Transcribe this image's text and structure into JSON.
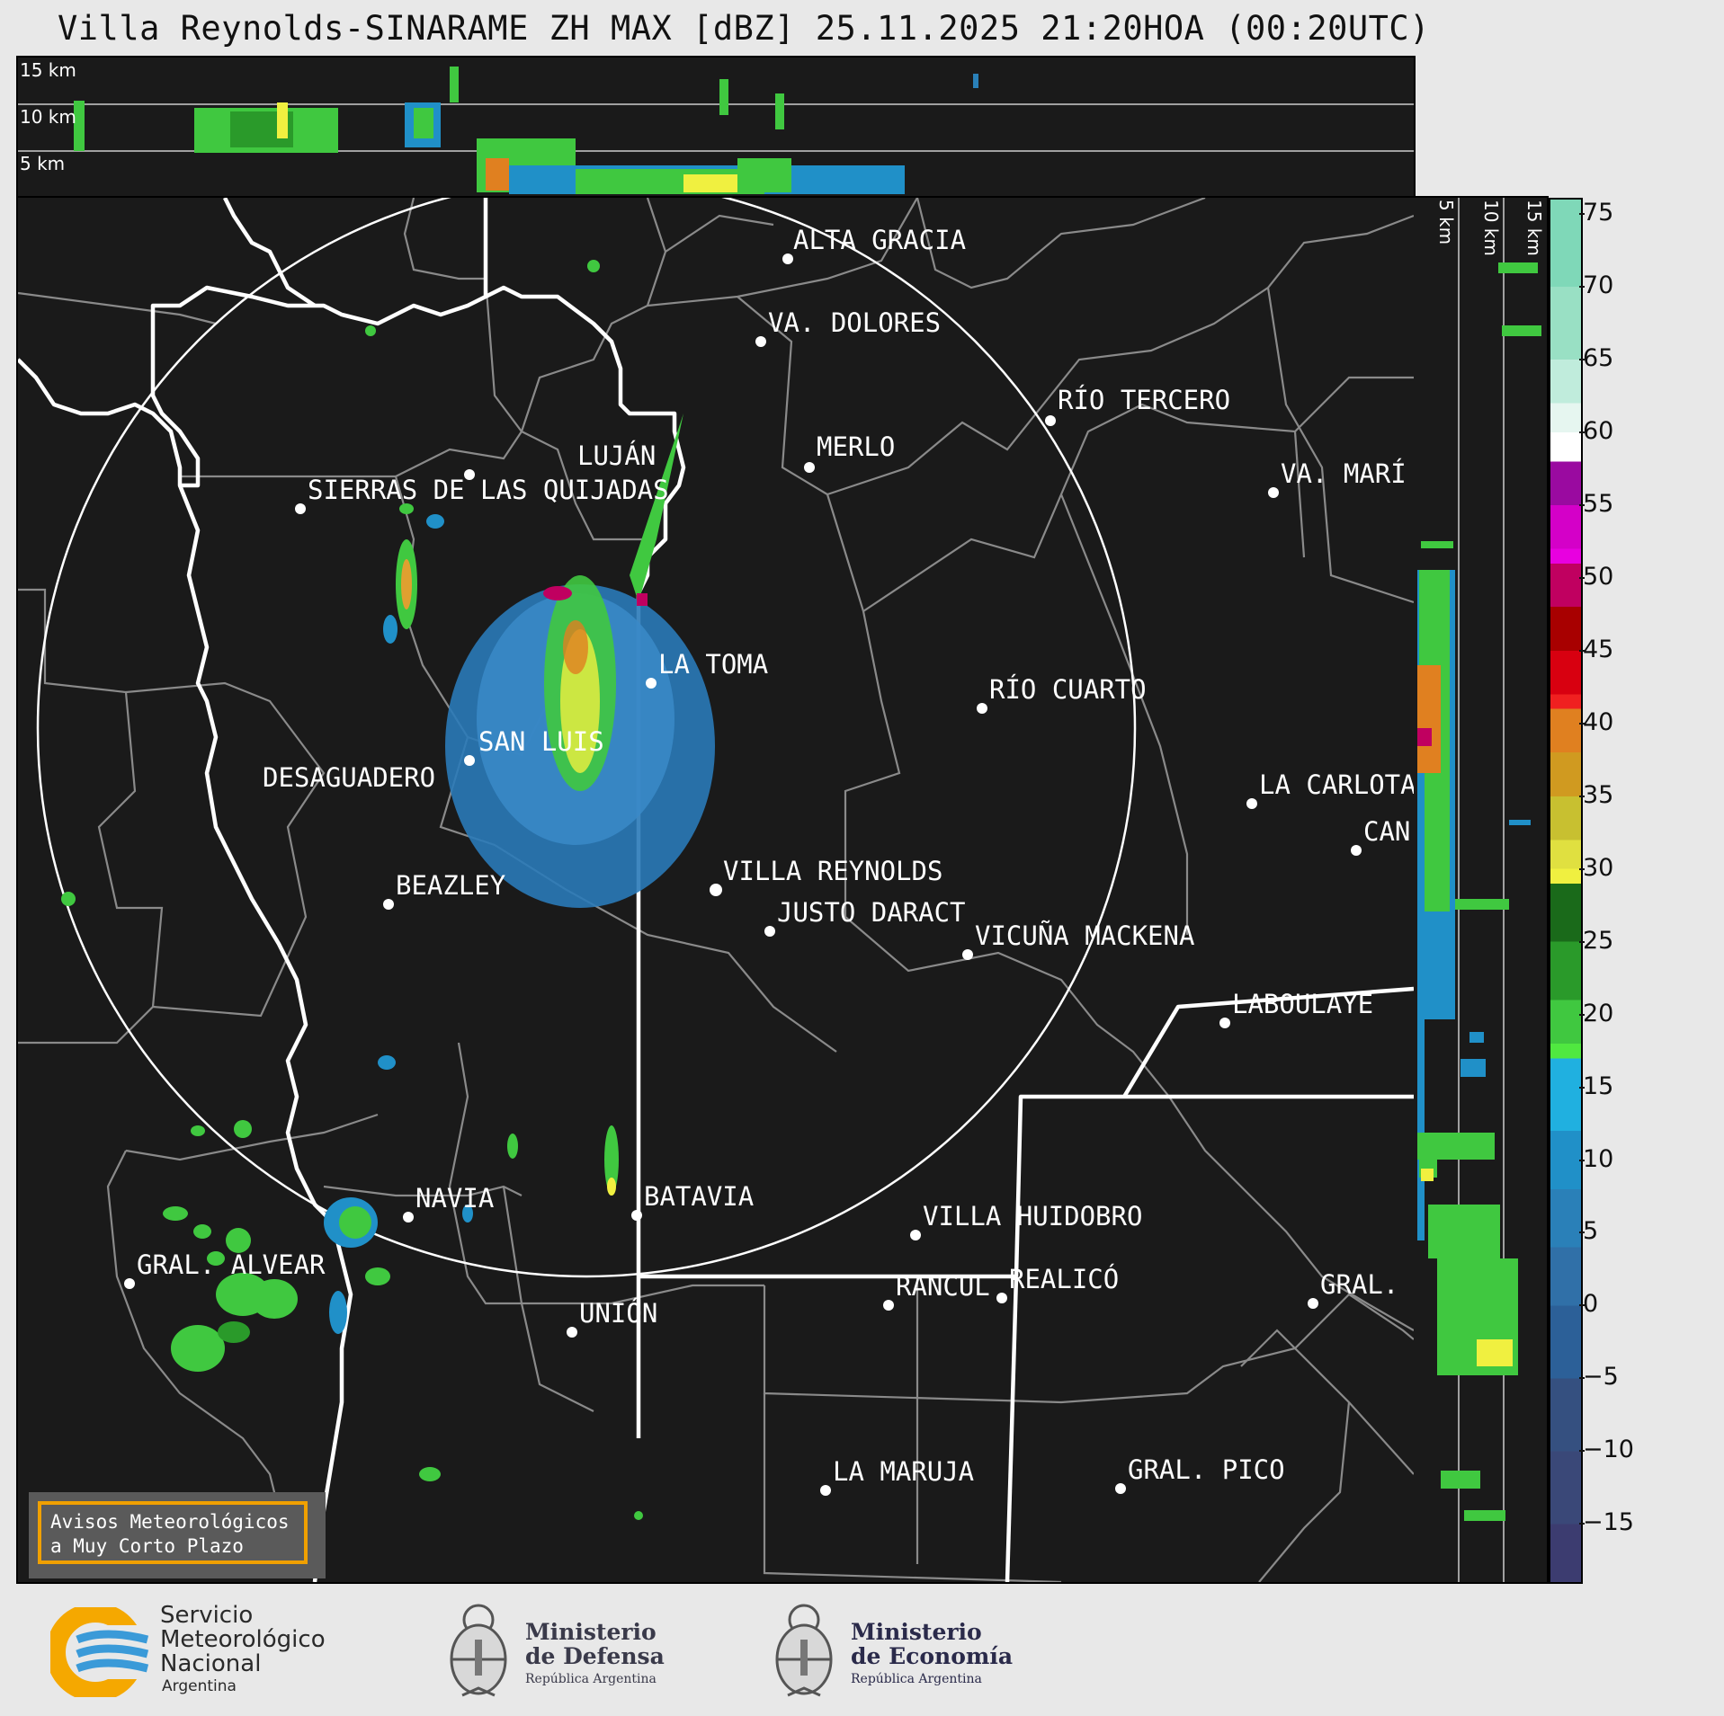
{
  "title": "Villa Reynolds-SINARAME ZH MAX [dBZ] 25.11.2025 21:20HOA (00:20UTC)",
  "top_panel": {
    "altitude_labels": [
      "15 km",
      "10 km",
      "5 km"
    ]
  },
  "side_panel": {
    "altitude_labels": [
      "5 km",
      "10 km",
      "15 km"
    ]
  },
  "cities": [
    {
      "name": "ALTA GRACIA"
    },
    {
      "name": "VA. DOLORES"
    },
    {
      "name": "RÍO TERCERO"
    },
    {
      "name": "LUJÁN"
    },
    {
      "name": "MERLO"
    },
    {
      "name": "VA. MARÍ"
    },
    {
      "name": "SIERRAS DE LAS QUIJADAS"
    },
    {
      "name": "LA TOMA"
    },
    {
      "name": "RÍO CUARTO"
    },
    {
      "name": "SAN LUIS"
    },
    {
      "name": "DESAGUADERO"
    },
    {
      "name": "LA CARLOTA"
    },
    {
      "name": "CAN"
    },
    {
      "name": "VILLA REYNOLDS"
    },
    {
      "name": "BEAZLEY"
    },
    {
      "name": "JUSTO DARACT"
    },
    {
      "name": "VICUÑA MACKENA"
    },
    {
      "name": "LABOULAYE"
    },
    {
      "name": "NAVIA"
    },
    {
      "name": "BATAVIA"
    },
    {
      "name": "VILLA HUIDOBRO"
    },
    {
      "name": "GRAL. ALVEAR"
    },
    {
      "name": "RANCUL"
    },
    {
      "name": "REALICÓ"
    },
    {
      "name": "GRAL."
    },
    {
      "name": "UNIÓN"
    },
    {
      "name": "LA MARUJA"
    },
    {
      "name": "GRAL. PICO"
    }
  ],
  "colorbar": {
    "unit": "dBZ",
    "ticks": [
      "75",
      "70",
      "65",
      "60",
      "55",
      "50",
      "45",
      "40",
      "35",
      "30",
      "25",
      "20",
      "15",
      "10",
      "5",
      "0",
      "−5",
      "−10",
      "−15"
    ],
    "stops": [
      {
        "dbz": 76,
        "color": "#7fd8b8"
      },
      {
        "dbz": 70,
        "color": "#99e0c4"
      },
      {
        "dbz": 65,
        "color": "#c0ecdc"
      },
      {
        "dbz": 62,
        "color": "#e6f6f0"
      },
      {
        "dbz": 60,
        "color": "#ffffff"
      },
      {
        "dbz": 58,
        "color": "#9a0aa0"
      },
      {
        "dbz": 55,
        "color": "#d400c8"
      },
      {
        "dbz": 52,
        "color": "#e800e0"
      },
      {
        "dbz": 51,
        "color": "#c00060"
      },
      {
        "dbz": 48,
        "color": "#a80000"
      },
      {
        "dbz": 45,
        "color": "#d80010"
      },
      {
        "dbz": 42,
        "color": "#f02020"
      },
      {
        "dbz": 41,
        "color": "#e08020"
      },
      {
        "dbz": 38,
        "color": "#d09a20"
      },
      {
        "dbz": 35,
        "color": "#c8c030"
      },
      {
        "dbz": 32,
        "color": "#e0e040"
      },
      {
        "dbz": 30,
        "color": "#f0f040"
      },
      {
        "dbz": 29,
        "color": "#1a6a1a"
      },
      {
        "dbz": 25,
        "color": "#2a9a2a"
      },
      {
        "dbz": 21,
        "color": "#40c840"
      },
      {
        "dbz": 18,
        "color": "#50e840"
      },
      {
        "dbz": 17,
        "color": "#20b0e0"
      },
      {
        "dbz": 12,
        "color": "#2090c8"
      },
      {
        "dbz": 8,
        "color": "#2a80b8"
      },
      {
        "dbz": 4,
        "color": "#3070a8"
      },
      {
        "dbz": 0,
        "color": "#2c6098"
      },
      {
        "dbz": -5,
        "color": "#355080"
      },
      {
        "dbz": -10,
        "color": "#3a4878"
      },
      {
        "dbz": -15,
        "color": "#3c3c70"
      },
      {
        "dbz": -19,
        "color": "#3c3c6c"
      }
    ]
  },
  "avisos": {
    "line1": "Avisos Meteorológicos",
    "line2": "a Muy Corto Plazo"
  },
  "logos": {
    "smn": {
      "line1": "Servicio",
      "line2": "Meteorológico",
      "line3": "Nacional",
      "line4": "Argentina"
    },
    "defensa": {
      "line1": "Ministerio",
      "line2": "de Defensa",
      "line3": "República Argentina"
    },
    "economia": {
      "line1": "Ministerio",
      "line2": "de Economía",
      "line3": "República Argentina"
    }
  },
  "colors": {
    "background": "#1a1a1a",
    "border_lines": "#ffffff",
    "department_lines": "#8a8a8a",
    "radar_echo": "#4a90c8",
    "avisos_border": "#f0a000"
  }
}
